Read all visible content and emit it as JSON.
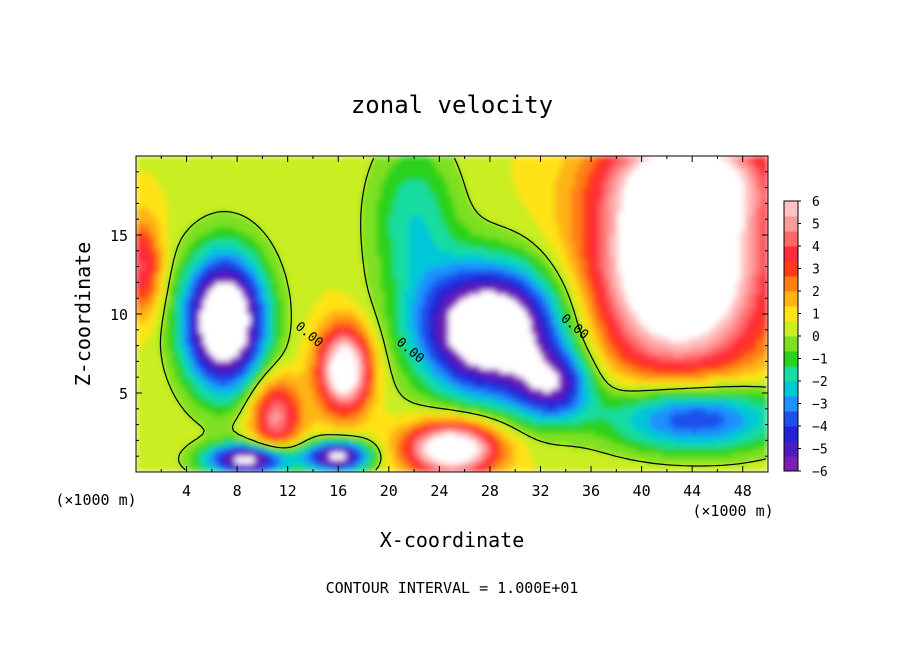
{
  "chart_data": {
    "type": "heatmap",
    "title": "zonal velocity",
    "xlabel": "X-coordinate",
    "ylabel": "Z-coordinate",
    "x_unit_label": "(×1000 m)",
    "footer": "CONTOUR INTERVAL = 1.000E+01",
    "xlim": [
      0,
      50
    ],
    "ylim": [
      0,
      20
    ],
    "x_ticks": [
      4,
      8,
      12,
      16,
      20,
      24,
      28,
      32,
      36,
      40,
      44,
      48
    ],
    "y_ticks": [
      5,
      10,
      15
    ],
    "colorbar": {
      "min": -6,
      "max": 6,
      "ticks": [
        "6",
        "5",
        "4",
        "3",
        "2",
        "1",
        "0",
        "−1",
        "−2",
        "−3",
        "−4",
        "−5",
        "−6"
      ],
      "out_of_range_color": "#ffffff"
    },
    "contour_labels": [
      {
        "text": "0.00",
        "x": 13.5,
        "y": 8.5
      },
      {
        "text": "0.00",
        "x": 21.5,
        "y": 7.5
      },
      {
        "text": "0.00",
        "x": 34.5,
        "y": 9.0
      }
    ],
    "features": [
      {
        "kind": "min",
        "x": 7,
        "y": 9.5,
        "value": -8
      },
      {
        "kind": "min",
        "x": 28,
        "y": 9.0,
        "value": -8
      },
      {
        "kind": "max",
        "x": 43,
        "y": 13.5,
        "value": 8
      },
      {
        "kind": "max",
        "x": 16.5,
        "y": 6.5,
        "value": 7
      },
      {
        "kind": "max",
        "x": 25,
        "y": 1.5,
        "value": 7
      },
      {
        "kind": "max",
        "x": 11,
        "y": 3.5,
        "value": 4
      }
    ]
  }
}
